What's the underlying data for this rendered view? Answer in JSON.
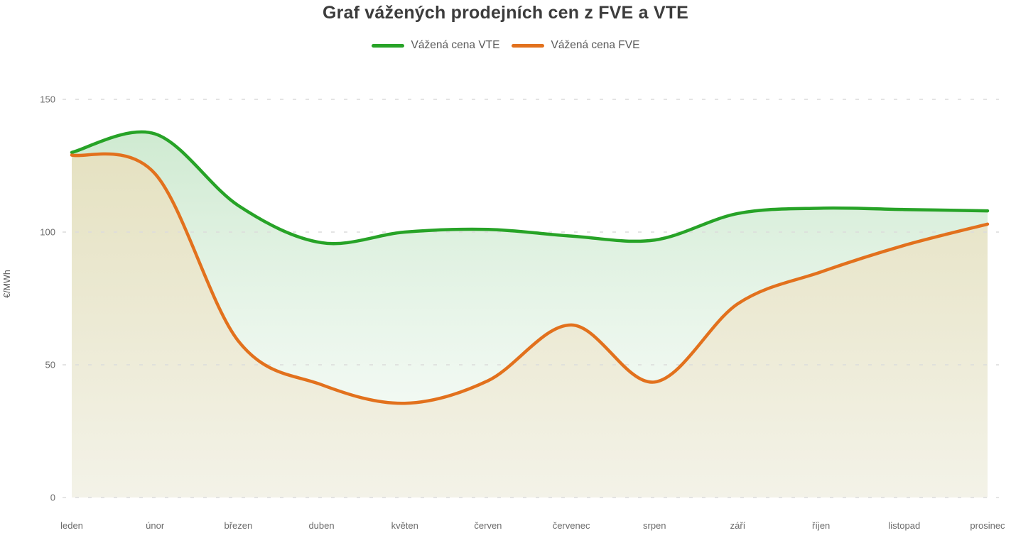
{
  "title": "Graf vážených prodejních cen z FVE a VTE",
  "legend": [
    {
      "label": "Vážená cena VTE",
      "color": "#27a327"
    },
    {
      "label": "Vážená cena FVE",
      "color": "#e2711d"
    }
  ],
  "y_axis": {
    "label": "€/MWh",
    "tick_labels": [
      "150",
      "100",
      "50",
      "0"
    ]
  },
  "chart_data": {
    "type": "line",
    "categories": [
      "leden",
      "únor",
      "březen",
      "duben",
      "květen",
      "červen",
      "červenec",
      "srpen",
      "září",
      "říjen",
      "listopad",
      "prosinec"
    ],
    "series": [
      {
        "name": "Vážená cena VTE",
        "color": "#27a327",
        "fill_top": "rgba(140,205,145,0.42)",
        "fill_bottom": "rgba(238,247,240,0.28)",
        "values": [
          130,
          137,
          110,
          96,
          100,
          101,
          98.5,
          97,
          107,
          109,
          108.5,
          108
        ]
      },
      {
        "name": "Vážená cena FVE",
        "color": "#e2711d",
        "fill_top": "rgba(229,224,190,0.96)",
        "fill_bottom": "rgba(243,242,231,0.96)",
        "values": [
          129,
          122,
          59,
          42.5,
          35.5,
          44,
          65,
          43.5,
          73,
          85,
          95,
          103
        ]
      }
    ],
    "title": "Graf vážených prodejních cen z FVE a VTE",
    "xlabel": "",
    "ylabel": "€/MWh",
    "ylim": [
      0,
      150
    ],
    "yticks": [
      150,
      100,
      50,
      0
    ],
    "grid": "horizontal-dashed",
    "legend_position": "top"
  }
}
